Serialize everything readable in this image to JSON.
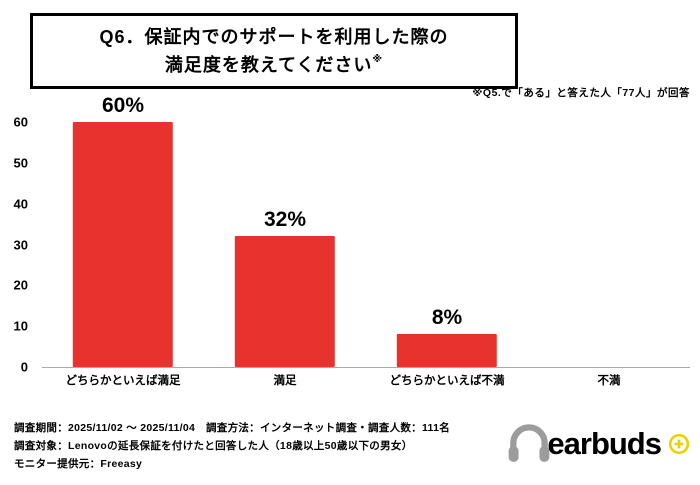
{
  "title": {
    "line1": "Q6．保証内でのサポートを利用した際の",
    "line2": "満足度を教えてください",
    "sup": "※"
  },
  "note": "※Q5.で「ある」と答えた人「77人」が回答",
  "chart_data": {
    "type": "bar",
    "title": "Q6．保証内でのサポートを利用した際の満足度を教えてください",
    "categories": [
      "どちらかといえば満足",
      "満足",
      "どちらかといえば不満",
      "不満"
    ],
    "values": [
      60,
      32,
      8,
      0
    ],
    "labels": [
      "60%",
      "32%",
      "8%",
      ""
    ],
    "xlabel": "",
    "ylabel": "",
    "ylim": [
      0,
      60
    ],
    "yticks": [
      0,
      10,
      20,
      30,
      40,
      50,
      60
    ],
    "bar_color": "#e8322d",
    "grid": false,
    "legend": "none"
  },
  "footer": {
    "line1": "調査期間：2025/11/02 ～ 2025/11/04　調査方法：インターネット調査・調査人数：111名",
    "line2": "調査対象：Lenovoの延長保証を付けたと回答した人（18歳以上50歳以下の男女）",
    "line3": "モニター提供元：Freeasy"
  },
  "logo": {
    "ear": "ear",
    "buds": "buds",
    "gray": "#9c9c9c",
    "yellow": "#e9d400"
  }
}
